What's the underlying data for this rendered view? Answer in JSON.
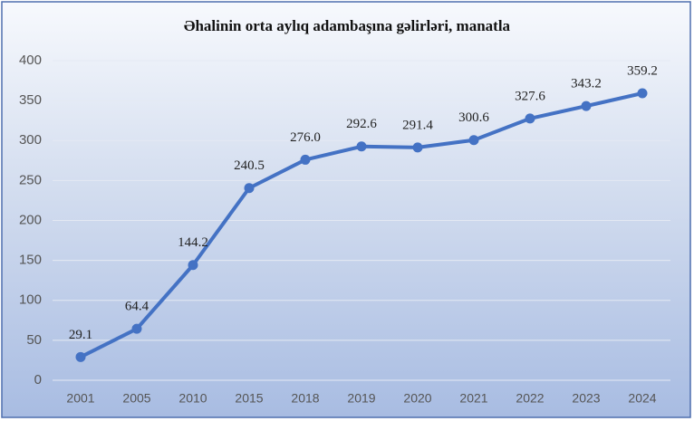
{
  "chart_data": {
    "type": "line",
    "title": "Əhalinin orta aylıq adambaşına gəlirləri, manatla",
    "categories": [
      "2001",
      "2005",
      "2010",
      "2015",
      "2018",
      "2019",
      "2020",
      "2021",
      "2022",
      "2023",
      "2024"
    ],
    "values": [
      29.1,
      64.4,
      144.2,
      240.5,
      276.0,
      292.6,
      291.4,
      300.6,
      327.6,
      343.2,
      359.2
    ],
    "value_labels": [
      "29.1",
      "64.4",
      "144.2",
      "240.5",
      "276.0",
      "292.6",
      "291.4",
      "300.6",
      "327.6",
      "343.2",
      "359.2"
    ],
    "color": "#4472c4",
    "ylim": [
      0,
      400
    ],
    "yticks": [
      0,
      50,
      100,
      150,
      200,
      250,
      300,
      350,
      400
    ],
    "grid": true
  }
}
